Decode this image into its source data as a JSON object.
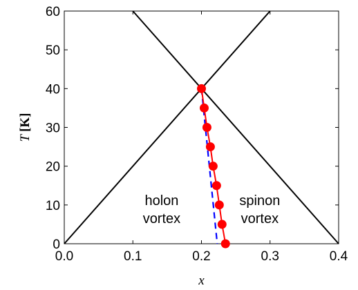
{
  "chart_data": {
    "type": "line",
    "xlabel": "x",
    "ylabel_var": "T",
    "ylabel_unit": "[K]",
    "xlim": [
      0.0,
      0.4
    ],
    "ylim": [
      0,
      60
    ],
    "x_ticks": [
      "0.0",
      "0.1",
      "0.2",
      "0.3",
      "0.4"
    ],
    "x_tick_values": [
      0.0,
      0.1,
      0.2,
      0.3,
      0.4
    ],
    "y_ticks": [
      "0",
      "10",
      "20",
      "30",
      "40",
      "50",
      "60"
    ],
    "y_tick_values": [
      0,
      10,
      20,
      30,
      40,
      50,
      60
    ],
    "grid": false,
    "annotations": [
      {
        "lines": [
          "holon",
          "vortex"
        ],
        "x": 0.142,
        "y": 10
      },
      {
        "lines": [
          "spinon",
          "vortex"
        ],
        "x": 0.285,
        "y": 10
      }
    ],
    "series": [
      {
        "style": "solid",
        "color": "#000000",
        "markers": false,
        "points": [
          [
            0.0,
            0
          ],
          [
            0.3,
            60
          ]
        ]
      },
      {
        "style": "solid",
        "color": "#000000",
        "markers": false,
        "points": [
          [
            0.1,
            60
          ],
          [
            0.4,
            0
          ]
        ]
      },
      {
        "style": "dashed",
        "color": "#0000ff",
        "markers": false,
        "points": [
          [
            0.2,
            40
          ],
          [
            0.223,
            0
          ]
        ]
      },
      {
        "style": "solid",
        "color": "#ff0000",
        "markers": true,
        "points": [
          [
            0.2,
            40
          ],
          [
            0.204,
            35
          ],
          [
            0.208,
            30
          ],
          [
            0.213,
            25
          ],
          [
            0.217,
            20
          ],
          [
            0.222,
            15
          ],
          [
            0.226,
            10
          ],
          [
            0.23,
            5
          ],
          [
            0.235,
            0
          ]
        ]
      }
    ]
  }
}
